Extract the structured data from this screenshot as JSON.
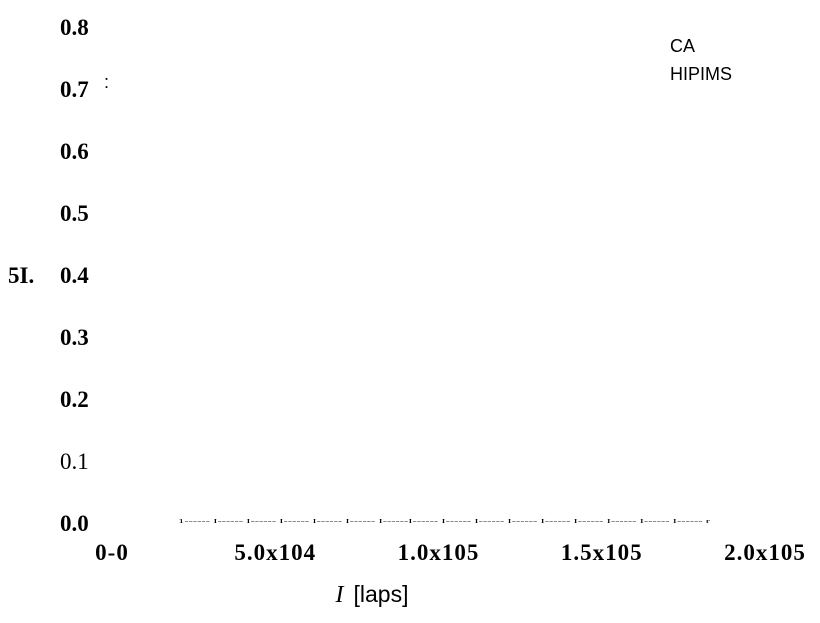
{
  "chart_data": {
    "type": "line",
    "title": "",
    "ylabel": "5I.",
    "xlabel": {
      "variable": "I",
      "unit": "[laps]"
    },
    "ylim": [
      0.0,
      0.8
    ],
    "xlim": [
      0,
      200000
    ],
    "yticks": [
      {
        "value": 0.8,
        "label": "0.8"
      },
      {
        "value": 0.7,
        "label": "0.7"
      },
      {
        "value": 0.6,
        "label": "0.6"
      },
      {
        "value": 0.5,
        "label": "0.5"
      },
      {
        "value": 0.4,
        "label": "0.4"
      },
      {
        "value": 0.3,
        "label": "0.3"
      },
      {
        "value": 0.2,
        "label": "0.2"
      },
      {
        "value": 0.1,
        "label": "0.1"
      },
      {
        "value": 0.0,
        "label": "0.0"
      }
    ],
    "xticks": [
      {
        "value": 0,
        "label": "0-0"
      },
      {
        "value": 50000,
        "label": "5.0x104"
      },
      {
        "value": 100000,
        "label": "1.0x105"
      },
      {
        "value": 150000,
        "label": "1.5x105"
      },
      {
        "value": 200000,
        "label": "2.0x105"
      }
    ],
    "series": [
      {
        "name": "CA",
        "x": [],
        "y": []
      },
      {
        "name": "HIPIMS",
        "x": [],
        "y": []
      }
    ],
    "legend_position": "top-right",
    "grid": false,
    "annotations": [
      ":"
    ],
    "axis_tick_strip": "1------ I------ I------ I------ I------ I------ I------I------ I------ I------ I------ I------ I------ I------ I------ I------ r"
  }
}
